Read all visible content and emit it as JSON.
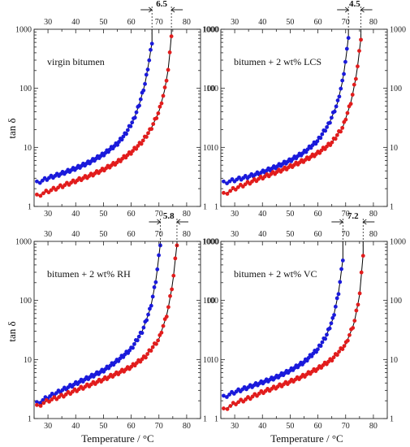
{
  "figure": {
    "ylabel": "tan δ",
    "xlabel": "Temperature / °C",
    "colors": {
      "series_a": "#1a1adb",
      "series_b": "#e21c1c",
      "curve_fit": "#000000",
      "axis": "#222222"
    }
  },
  "chart_data": [
    {
      "type": "scatter",
      "panel_label": "virgin bitumen",
      "gap_label": "6.5",
      "xlim": [
        25,
        85
      ],
      "ylim": [
        1,
        1000
      ],
      "yscale": "log",
      "xticks": [
        30,
        40,
        50,
        60,
        70,
        80
      ],
      "xticks_top": [
        30,
        40,
        50,
        60,
        70,
        80
      ],
      "yticks": [
        1,
        10,
        100,
        1000
      ],
      "grid": false,
      "series": [
        {
          "color": "#1a1adb",
          "x": [
            26,
            30,
            35,
            40,
            45,
            50,
            55,
            58,
            61,
            63,
            65,
            66.5,
            67.5
          ],
          "y": [
            2.5,
            3.0,
            3.6,
            4.4,
            5.6,
            7.6,
            11.5,
            17,
            30,
            55,
            120,
            300,
            600
          ]
        },
        {
          "color": "#e21c1c",
          "x": [
            26,
            30,
            35,
            40,
            45,
            50,
            55,
            60,
            64,
            67,
            70,
            72,
            73.5,
            74.5
          ],
          "y": [
            1.5,
            1.8,
            2.2,
            2.7,
            3.3,
            4.2,
            5.6,
            8.2,
            12.5,
            20,
            40,
            90,
            230,
            800
          ]
        }
      ]
    },
    {
      "type": "scatter",
      "panel_label": "bitumen + 2 wt% LCS",
      "gap_label": "4.5",
      "xlim": [
        25,
        85
      ],
      "ylim": [
        1,
        1000
      ],
      "yscale": "log",
      "xticks": [
        30,
        40,
        50,
        60,
        70,
        80
      ],
      "xticks_top": [
        30,
        40,
        50,
        60,
        70,
        80
      ],
      "yticks": [
        1,
        10,
        100,
        1000
      ],
      "grid": false,
      "series": [
        {
          "color": "#1a1adb",
          "x": [
            26,
            30,
            35,
            40,
            45,
            50,
            55,
            60,
            64,
            67,
            69,
            70.3,
            71
          ],
          "y": [
            2.5,
            2.8,
            3.2,
            3.8,
            4.7,
            6.0,
            8.2,
            13,
            25,
            55,
            140,
            380,
            750
          ]
        },
        {
          "color": "#e21c1c",
          "x": [
            26,
            30,
            35,
            40,
            45,
            50,
            55,
            60,
            65,
            69,
            72,
            74,
            75.5
          ],
          "y": [
            1.6,
            2.0,
            2.5,
            3.1,
            3.8,
            4.7,
            6.0,
            8.0,
            12,
            22,
            60,
            180,
            700
          ]
        }
      ]
    },
    {
      "type": "scatter",
      "panel_label": "bitumen + 2 wt% RH",
      "gap_label": "5.8",
      "xlim": [
        25,
        85
      ],
      "ylim": [
        1,
        1000
      ],
      "yscale": "log",
      "xticks": [
        30,
        40,
        50,
        60,
        70,
        80
      ],
      "xticks_top": [
        30,
        40,
        50,
        60,
        70,
        80
      ],
      "yticks": [
        1,
        10,
        100,
        1000
      ],
      "grid": false,
      "series": [
        {
          "color": "#1a1adb",
          "x": [
            26,
            30,
            35,
            40,
            45,
            50,
            55,
            60,
            64,
            67,
            69,
            70.5
          ],
          "y": [
            1.8,
            2.3,
            3.0,
            3.9,
            5.0,
            6.5,
            9.5,
            15,
            30,
            75,
            230,
            900
          ]
        },
        {
          "color": "#e21c1c",
          "x": [
            26,
            30,
            35,
            40,
            45,
            50,
            55,
            60,
            65,
            70,
            73,
            75,
            76.5
          ],
          "y": [
            1.6,
            2.0,
            2.4,
            3.0,
            3.7,
            4.6,
            5.8,
            7.5,
            11,
            22,
            60,
            200,
            900
          ]
        }
      ]
    },
    {
      "type": "scatter",
      "panel_label": "bitumen + 2 wt% VC",
      "gap_label": "7.2",
      "xlim": [
        25,
        85
      ],
      "ylim": [
        1,
        1000
      ],
      "yscale": "log",
      "xticks": [
        30,
        40,
        50,
        60,
        70,
        80
      ],
      "xticks_top": [
        30,
        40,
        50,
        60,
        70,
        80
      ],
      "yticks": [
        1,
        10,
        100,
        1000
      ],
      "grid": false,
      "series": [
        {
          "color": "#1a1adb",
          "x": [
            26,
            30,
            35,
            40,
            45,
            50,
            55,
            60,
            63,
            65.5,
            67.5,
            69
          ],
          "y": [
            2.3,
            2.8,
            3.4,
            4.1,
            5.0,
            6.5,
            9.0,
            15,
            25,
            50,
            140,
            500
          ]
        },
        {
          "color": "#e21c1c",
          "x": [
            26,
            30,
            35,
            40,
            45,
            50,
            55,
            60,
            65,
            70,
            73,
            75,
            76.3
          ],
          "y": [
            1.4,
            1.8,
            2.2,
            2.8,
            3.4,
            4.2,
            5.3,
            7.0,
            10,
            18,
            40,
            120,
            600
          ]
        }
      ]
    }
  ]
}
